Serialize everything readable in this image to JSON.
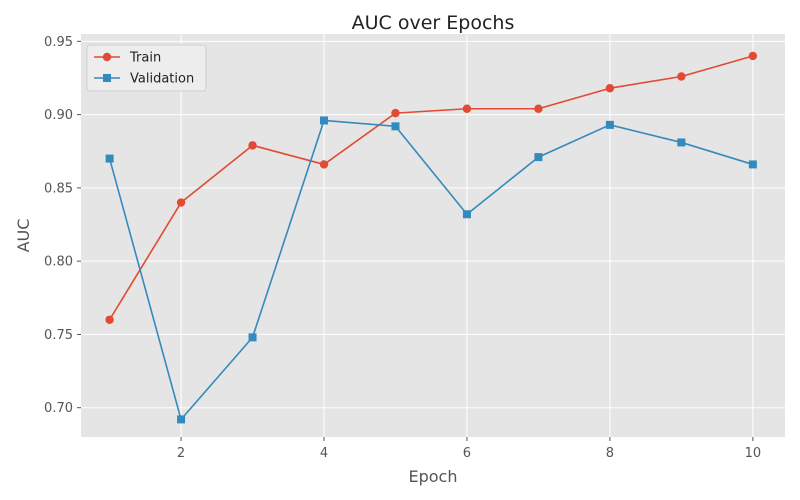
{
  "chart_data": {
    "type": "line",
    "title": "AUC over Epochs",
    "xlabel": "Epoch",
    "ylabel": "AUC",
    "x": [
      1,
      2,
      3,
      4,
      5,
      6,
      7,
      8,
      9,
      10
    ],
    "xlim": [
      0.6,
      10.45
    ],
    "ylim": [
      0.68,
      0.955
    ],
    "xticks": [
      2,
      4,
      6,
      8,
      10
    ],
    "yticks": [
      0.7,
      0.75,
      0.8,
      0.85,
      0.9,
      0.95
    ],
    "xtick_labels": [
      "2",
      "4",
      "6",
      "8",
      "10"
    ],
    "ytick_labels": [
      "0.70",
      "0.75",
      "0.80",
      "0.85",
      "0.90",
      "0.95"
    ],
    "grid": true,
    "legend_position": "top-left",
    "series": [
      {
        "name": "Train",
        "color": "#E24A33",
        "marker": "circle",
        "values": [
          0.76,
          0.84,
          0.879,
          0.866,
          0.901,
          0.904,
          0.904,
          0.918,
          0.926,
          0.94
        ]
      },
      {
        "name": "Validation",
        "color": "#348ABD",
        "marker": "square",
        "values": [
          0.87,
          0.692,
          0.748,
          0.896,
          0.892,
          0.832,
          0.871,
          0.893,
          0.881,
          0.866
        ]
      }
    ]
  }
}
